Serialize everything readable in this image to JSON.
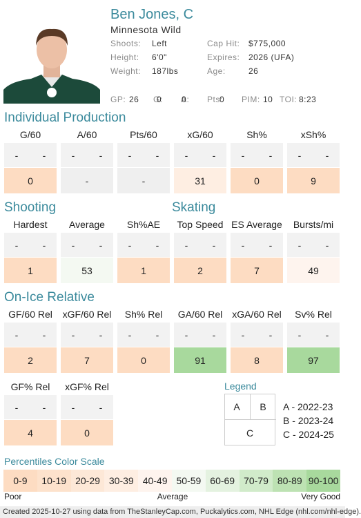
{
  "player": {
    "name": "Ben Jones, C",
    "team": "Minnesota Wild",
    "info": [
      {
        "label": "Shoots:",
        "value": "Left"
      },
      {
        "label": "Cap Hit:",
        "value": "$775,000"
      },
      {
        "label": "Height:",
        "value": "6'0\""
      },
      {
        "label": "Expires:",
        "value": "2026 (UFA)"
      },
      {
        "label": "Weight:",
        "value": "187lbs"
      },
      {
        "label": "Age:",
        "value": 26
      }
    ],
    "stats": [
      {
        "label": "GP:",
        "value": 26
      },
      {
        "label": "G:",
        "value": 0
      },
      {
        "label": "A:",
        "value": 0
      },
      {
        "label": "Pts:",
        "value": 0
      },
      {
        "label": "PIM:",
        "value": 10
      },
      {
        "label": "TOI:",
        "value": "8:23"
      }
    ]
  },
  "sections": [
    {
      "title": "Individual Production",
      "metrics": [
        {
          "label": "G/60",
          "a": "-",
          "b": "-",
          "c": 0
        },
        {
          "label": "A/60",
          "a": "-",
          "b": "-",
          "c": "-"
        },
        {
          "label": "Pts/60",
          "a": "-",
          "b": "-",
          "c": "-"
        },
        {
          "label": "xG/60",
          "a": "-",
          "b": "-",
          "c": 31
        },
        {
          "label": "Sh%",
          "a": "-",
          "b": "-",
          "c": 0
        },
        {
          "label": "xSh%",
          "a": "-",
          "b": "-",
          "c": 9
        }
      ]
    },
    {
      "title": "Shooting",
      "metrics": [
        {
          "label": "Hardest",
          "a": "-",
          "b": "-",
          "c": 1
        },
        {
          "label": "Average",
          "a": "-",
          "b": "-",
          "c": 53
        },
        {
          "label": "Sh%AE",
          "a": "-",
          "b": "-",
          "c": 1
        }
      ]
    },
    {
      "title": "Skating",
      "metrics": [
        {
          "label": "Top Speed",
          "a": "-",
          "b": "-",
          "c": 2
        },
        {
          "label": "ES Average",
          "a": "-",
          "b": "-",
          "c": 7
        },
        {
          "label": "Bursts/mi",
          "a": "-",
          "b": "-",
          "c": 49
        }
      ]
    },
    {
      "title": "On-Ice Relative",
      "metrics": [
        {
          "label": "GF/60 Rel",
          "a": "-",
          "b": "-",
          "c": 2
        },
        {
          "label": "xGF/60 Rel",
          "a": "-",
          "b": "-",
          "c": 7
        },
        {
          "label": "Sh% Rel",
          "a": "-",
          "b": "-",
          "c": 0
        },
        {
          "label": "GA/60 Rel",
          "a": "-",
          "b": "-",
          "c": 91
        },
        {
          "label": "xGA/60 Rel",
          "a": "-",
          "b": "-",
          "c": 8
        },
        {
          "label": "Sv% Rel",
          "a": "-",
          "b": "-",
          "c": 97
        },
        {
          "label": "GF% Rel",
          "a": "-",
          "b": "-",
          "c": 4
        },
        {
          "label": "xGF% Rel",
          "a": "-",
          "b": "-",
          "c": 0
        }
      ]
    }
  ],
  "legend": {
    "title": "Legend",
    "cells": [
      "A",
      "B",
      "C"
    ],
    "entries": [
      "A - 2022-23",
      "B - 2023-24",
      "C - 2024-25"
    ]
  },
  "scale": {
    "title": "Percentiles Color Scale",
    "bins": [
      {
        "label": "0-9",
        "color": "#fddcc2"
      },
      {
        "label": "10-19",
        "color": "#fde2cc"
      },
      {
        "label": "20-29",
        "color": "#fde8d7"
      },
      {
        "label": "30-39",
        "color": "#feeee2"
      },
      {
        "label": "40-49",
        "color": "#fef4ee"
      },
      {
        "label": "50-59",
        "color": "#f4f9f2"
      },
      {
        "label": "60-69",
        "color": "#e4f2e0"
      },
      {
        "label": "70-79",
        "color": "#d1ebca"
      },
      {
        "label": "80-89",
        "color": "#bde2b3"
      },
      {
        "label": "90-100",
        "color": "#a8d99d"
      }
    ],
    "low": "Poor",
    "mid": "Average",
    "high": "Very Good"
  },
  "footer": "Created 2025-10-27 using data from TheStanleyCap.com, Puckalytics.com, NHL Edge (nhl.com/nhl-edge)."
}
